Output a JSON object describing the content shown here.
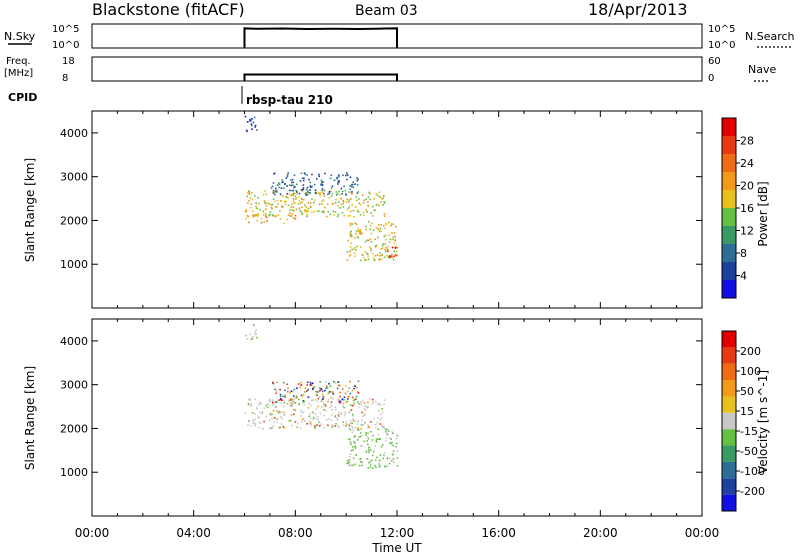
{
  "header": {
    "station": "Blackstone (fitACF)",
    "beam": "Beam 03",
    "date": "18/Apr/2013"
  },
  "sidebar": {
    "nsky_label": "N.Sky",
    "nsky_ticks": [
      "10^5",
      "10^0"
    ],
    "freq_label_top": "Freq.",
    "freq_label_unit": "[MHz]",
    "freq_ticks": [
      "18",
      "8"
    ],
    "cpid_label": "CPID",
    "nsearch_label": "N.Search",
    "nsearch_ticks": [
      "10^5",
      "10^0"
    ],
    "nave_label": "Nave",
    "nave_ticks": [
      "60",
      "0"
    ]
  },
  "cpid_value": "rbsp-tau 210",
  "colors": {
    "power_scale": [
      "#1010e0",
      "#2040a0",
      "#2e6e96",
      "#3a9a66",
      "#66c044",
      "#e8c21c",
      "#f09a18",
      "#f06c14",
      "#e83a10",
      "#e00000"
    ],
    "velocity_scale": [
      "#1010e0",
      "#2040a0",
      "#2e6e96",
      "#3a9a66",
      "#66c044",
      "#c8c8c8",
      "#e8c21c",
      "#f09a18",
      "#f06c14",
      "#e83a10",
      "#e00000"
    ]
  },
  "chart_data": [
    {
      "type": "line",
      "panel": "nsky",
      "x_unit": "hours UT",
      "xlim": [
        0,
        24
      ],
      "ylim_log10": [
        0,
        5
      ],
      "segments": [
        {
          "x": [
            6.0,
            6.0,
            6.5,
            7.5,
            8.5,
            9.5,
            10.5,
            11.5,
            12.0,
            12.0
          ],
          "y_log10": [
            0,
            4.1,
            4.0,
            4.05,
            3.95,
            4.0,
            3.95,
            4.05,
            4.1,
            0
          ]
        }
      ]
    },
    {
      "type": "line",
      "panel": "freq",
      "x_unit": "hours UT",
      "xlim": [
        0,
        24
      ],
      "ylim": [
        8,
        18
      ],
      "right_ylim": [
        0,
        60
      ],
      "segments": [
        {
          "x": [
            6.0,
            6.0,
            12.0,
            12.0
          ],
          "y": [
            8,
            10.7,
            10.7,
            8
          ]
        }
      ]
    },
    {
      "type": "heatmap",
      "panel": "power",
      "xlabel": "",
      "ylabel": "Slant Range [km]",
      "x_unit": "hours UT",
      "xlim": [
        0,
        24
      ],
      "ylim": [
        0,
        4500
      ],
      "yticks": [
        1000,
        2000,
        3000,
        4000
      ],
      "colorbar": {
        "label": "Power [dB]",
        "range": [
          0,
          32
        ],
        "ticks": [
          "4",
          "8",
          "12",
          "16",
          "20",
          "24",
          "28"
        ]
      },
      "regions": [
        {
          "x": [
            6.0,
            6.5
          ],
          "y": [
            4000,
            4400
          ],
          "level": 4
        },
        {
          "x": [
            6.0,
            11.5
          ],
          "y": [
            2100,
            2700
          ],
          "level": 16
        },
        {
          "x": [
            6.0,
            8.0
          ],
          "y": [
            1950,
            2150
          ],
          "level": 22
        },
        {
          "x": [
            7.0,
            10.5
          ],
          "y": [
            2600,
            3100
          ],
          "level": 8
        },
        {
          "x": [
            10.0,
            12.0
          ],
          "y": [
            1100,
            2000
          ],
          "level": 18
        },
        {
          "x": [
            11.6,
            12.0
          ],
          "y": [
            1100,
            1400
          ],
          "level": 28
        }
      ]
    },
    {
      "type": "heatmap",
      "panel": "velocity",
      "xlabel": "Time UT",
      "ylabel": "Slant Range [km]",
      "x_unit": "hours UT",
      "xlim": [
        0,
        24
      ],
      "ylim": [
        0,
        4500
      ],
      "yticks": [
        1000,
        2000,
        3000,
        4000
      ],
      "xticks": [
        "00:00",
        "04:00",
        "08:00",
        "12:00",
        "16:00",
        "20:00",
        "00:00"
      ],
      "colorbar": {
        "label": "Velocity [m s^-1]",
        "ticks": [
          "200",
          "100",
          "50",
          "15",
          "-15",
          "-50",
          "-100",
          "-200"
        ]
      },
      "regions": [
        {
          "x": [
            6.0,
            6.5
          ],
          "y": [
            4000,
            4400
          ],
          "level": "gray"
        },
        {
          "x": [
            6.0,
            11.5
          ],
          "y": [
            2000,
            2700
          ],
          "level": "gray"
        },
        {
          "x": [
            7.0,
            10.5
          ],
          "y": [
            2600,
            3100
          ],
          "level": "mixed"
        },
        {
          "x": [
            10.0,
            12.0
          ],
          "y": [
            1100,
            2000
          ],
          "level": "green"
        }
      ]
    }
  ]
}
